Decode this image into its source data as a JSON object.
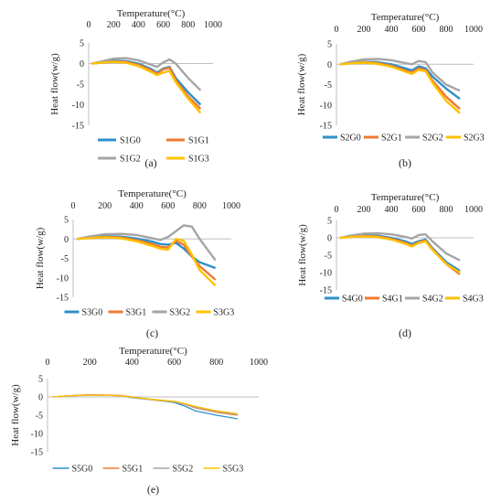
{
  "colors": {
    "G0": "#2e8fca",
    "G1": "#f07a2f",
    "G2": "#a5a5a5",
    "G3": "#ffc000"
  },
  "chart_data": [
    {
      "type": "line",
      "caption": "(a)",
      "xlabel": "Temperature(°C)",
      "ylabel": "Heat flow(w/g)",
      "xlim": [
        0,
        1000
      ],
      "ylim": [
        -15,
        5
      ],
      "xticks": [
        "0",
        "200",
        "400",
        "600",
        "800",
        "1000"
      ],
      "yticks": [
        "5",
        "0",
        "-5",
        "-10",
        "-15"
      ],
      "legend_layout": "2x2",
      "x": [
        25,
        100,
        200,
        300,
        400,
        500,
        550,
        600,
        650,
        700,
        800,
        900
      ],
      "series": [
        {
          "name": "S1G0",
          "key": "G0",
          "values": [
            0,
            0.3,
            0.7,
            0.6,
            0,
            -1.3,
            -2.2,
            -1.2,
            -0.8,
            -3.5,
            -7,
            -10
          ]
        },
        {
          "name": "S1G1",
          "key": "G1",
          "values": [
            0,
            0.2,
            0.5,
            0.4,
            -0.3,
            -1.6,
            -2.5,
            -1.4,
            -1,
            -4,
            -8,
            -11
          ]
        },
        {
          "name": "S1G2",
          "key": "G2",
          "values": [
            0,
            0.5,
            1.2,
            1.3,
            0.8,
            -0.3,
            -0.8,
            0.3,
            1,
            0,
            -3.5,
            -6.5
          ]
        },
        {
          "name": "S1G3",
          "key": "G3",
          "values": [
            0,
            0.2,
            0.4,
            0.2,
            -0.6,
            -2,
            -2.8,
            -2.2,
            -1.8,
            -4.5,
            -8.5,
            -12
          ]
        }
      ]
    },
    {
      "type": "line",
      "caption": "(b)",
      "xlabel": "Temperature(°C)",
      "ylabel": "Heat flow(w/g)",
      "xlim": [
        0,
        1000
      ],
      "ylim": [
        -15,
        5
      ],
      "xticks": [
        "0",
        "200",
        "400",
        "600",
        "800",
        "1000"
      ],
      "yticks": [
        "5",
        "0",
        "-5",
        "-10",
        "-15"
      ],
      "legend_layout": "1x4",
      "x": [
        25,
        100,
        200,
        300,
        400,
        500,
        550,
        600,
        650,
        700,
        800,
        900
      ],
      "series": [
        {
          "name": "S2G0",
          "key": "G0",
          "values": [
            0,
            0.3,
            0.6,
            0.5,
            0,
            -1,
            -1.5,
            -0.5,
            -1,
            -3,
            -6,
            -8.5
          ]
        },
        {
          "name": "S2G1",
          "key": "G1",
          "values": [
            0,
            0.3,
            0.5,
            0.3,
            -0.4,
            -1.5,
            -2,
            -1,
            -1.4,
            -4,
            -8,
            -11
          ]
        },
        {
          "name": "S2G2",
          "key": "G2",
          "values": [
            0,
            0.6,
            1.2,
            1.3,
            1,
            0.3,
            0,
            0.8,
            0.5,
            -2,
            -5,
            -6.5
          ]
        },
        {
          "name": "S2G3",
          "key": "G3",
          "values": [
            0,
            0.2,
            0.4,
            0.1,
            -0.6,
            -1.8,
            -2.4,
            -1.4,
            -1.7,
            -4.5,
            -9,
            -12
          ]
        }
      ]
    },
    {
      "type": "line",
      "caption": "(c)",
      "xlabel": "Temperature(°C)",
      "ylabel": "Heat flow(w/g)",
      "xlim": [
        0,
        1000
      ],
      "ylim": [
        -15,
        5
      ],
      "xticks": [
        "0",
        "200",
        "400",
        "600",
        "800",
        "1000"
      ],
      "yticks": [
        "5",
        "0",
        "-5",
        "-10",
        "-15"
      ],
      "legend_layout": "1x4",
      "x": [
        25,
        100,
        200,
        300,
        400,
        500,
        550,
        600,
        650,
        700,
        750,
        800,
        900
      ],
      "series": [
        {
          "name": "S3G0",
          "key": "G0",
          "values": [
            0,
            0.4,
            0.7,
            0.6,
            0.1,
            -0.7,
            -1.3,
            -1.5,
            -1,
            -2.5,
            -4.5,
            -6,
            -7.5
          ]
        },
        {
          "name": "S3G1",
          "key": "G1",
          "values": [
            0,
            0.3,
            0.5,
            0.4,
            -0.3,
            -1.3,
            -2,
            -2.2,
            -0.5,
            -1.5,
            -4.5,
            -7,
            -10.5
          ]
        },
        {
          "name": "S3G2",
          "key": "G2",
          "values": [
            0,
            0.6,
            1.2,
            1.3,
            1,
            0.2,
            -0.3,
            0.5,
            2,
            3.5,
            3.2,
            0,
            -5.5
          ]
        },
        {
          "name": "S3G3",
          "key": "G3",
          "values": [
            0,
            0.2,
            0.4,
            0.2,
            -0.6,
            -1.8,
            -2.5,
            -2.8,
            0,
            -0.5,
            -4,
            -8,
            -12
          ]
        }
      ]
    },
    {
      "type": "line",
      "caption": "(d)",
      "xlabel": "Temperature(°C)",
      "ylabel": "Heat flow(w/g)",
      "xlim": [
        0,
        1000
      ],
      "ylim": [
        -15,
        5
      ],
      "xticks": [
        "0",
        "200",
        "400",
        "600",
        "800",
        "1000"
      ],
      "yticks": [
        "5",
        "0",
        "-5",
        "-10",
        "-15"
      ],
      "legend_layout": "1x4",
      "x": [
        25,
        100,
        200,
        300,
        400,
        500,
        550,
        600,
        650,
        700,
        800,
        900
      ],
      "series": [
        {
          "name": "S4G0",
          "key": "G0",
          "values": [
            0,
            0.3,
            0.6,
            0.6,
            0,
            -1,
            -1.8,
            -1,
            -0.5,
            -3,
            -7,
            -9.5
          ]
        },
        {
          "name": "S4G1",
          "key": "G1",
          "values": [
            0,
            0.3,
            0.5,
            0.4,
            -0.3,
            -1.4,
            -2.2,
            -1.3,
            -0.8,
            -3.3,
            -7.5,
            -10.5
          ]
        },
        {
          "name": "S4G2",
          "key": "G2",
          "values": [
            0,
            0.6,
            1.2,
            1.3,
            1,
            0.3,
            -0.2,
            0.8,
            1,
            -1,
            -4.5,
            -6.5
          ]
        },
        {
          "name": "S4G3",
          "key": "G3",
          "values": [
            0,
            0.2,
            0.4,
            0.2,
            -0.5,
            -1.7,
            -2.5,
            -1.5,
            -1,
            -3.5,
            -7.5,
            -10
          ]
        }
      ]
    },
    {
      "type": "line",
      "caption": "(e)",
      "xlabel": "Temperature(°C)",
      "ylabel": "Heat flow(w/g)",
      "xlim": [
        0,
        1000
      ],
      "ylim": [
        -15,
        5
      ],
      "xticks": [
        "0",
        "200",
        "400",
        "600",
        "800",
        "1000"
      ],
      "yticks": [
        "5",
        "0",
        "-5",
        "-10",
        "-15"
      ],
      "legend_layout": "1x4",
      "x": [
        25,
        100,
        200,
        300,
        350,
        400,
        500,
        600,
        650,
        700,
        800,
        900
      ],
      "series": [
        {
          "name": "S5G0",
          "key": "G0",
          "values": [
            0,
            0.3,
            0.6,
            0.4,
            0.3,
            -0.2,
            -0.8,
            -1.5,
            -2.5,
            -3.8,
            -5,
            -6
          ]
        },
        {
          "name": "S5G1",
          "key": "G1",
          "values": [
            0,
            0.3,
            0.6,
            0.5,
            0.4,
            0,
            -0.8,
            -1.3,
            -2,
            -3,
            -4.2,
            -5
          ]
        },
        {
          "name": "S5G2",
          "key": "G2",
          "values": [
            0,
            0.3,
            0.5,
            0.4,
            0.3,
            -0.1,
            -0.7,
            -1.3,
            -1.9,
            -2.8,
            -4,
            -4.8
          ]
        },
        {
          "name": "S5G3",
          "key": "G3",
          "values": [
            0,
            0.3,
            0.5,
            0.4,
            0.3,
            -0.1,
            -0.7,
            -1.2,
            -1.8,
            -2.6,
            -3.8,
            -4.6
          ]
        }
      ]
    }
  ]
}
